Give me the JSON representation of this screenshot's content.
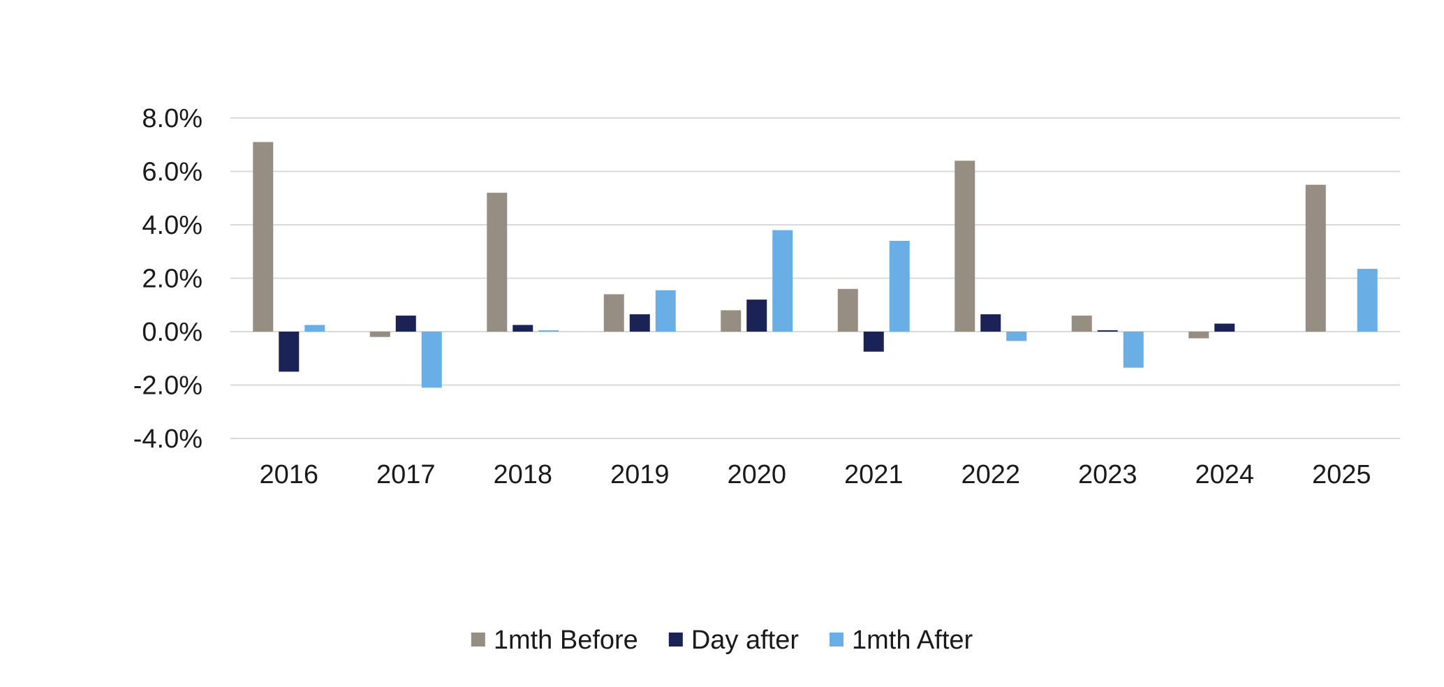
{
  "chart_data": {
    "type": "bar",
    "categories": [
      "2016",
      "2017",
      "2018",
      "2019",
      "2020",
      "2021",
      "2022",
      "2023",
      "2024",
      "2025"
    ],
    "series": [
      {
        "name": "1mth Before",
        "color": "#968d83",
        "values": [
          7.1,
          -0.2,
          5.2,
          1.4,
          0.8,
          1.6,
          6.4,
          0.6,
          -0.25,
          5.5
        ]
      },
      {
        "name": "Day after",
        "color": "#1a2256",
        "values": [
          -1.5,
          0.6,
          0.25,
          0.65,
          1.2,
          -0.75,
          0.65,
          0.05,
          0.3,
          null
        ]
      },
      {
        "name": "1mth After",
        "color": "#6aaee6",
        "values": [
          0.25,
          -2.1,
          0.05,
          1.55,
          3.8,
          3.4,
          -0.35,
          -1.35,
          null,
          2.35
        ]
      }
    ],
    "ylim": [
      -4,
      8
    ],
    "yticks": [
      8,
      6,
      4,
      2,
      0,
      -2,
      -4
    ],
    "ytick_labels": [
      "8.0%",
      "6.0%",
      "4.0%",
      "2.0%",
      "0.0%",
      "-2.0%",
      "-4.0%"
    ],
    "title": "",
    "xlabel": "",
    "ylabel": "",
    "grid": true,
    "legend_position": "bottom-center",
    "gridline_color": "#d9d9d9"
  }
}
